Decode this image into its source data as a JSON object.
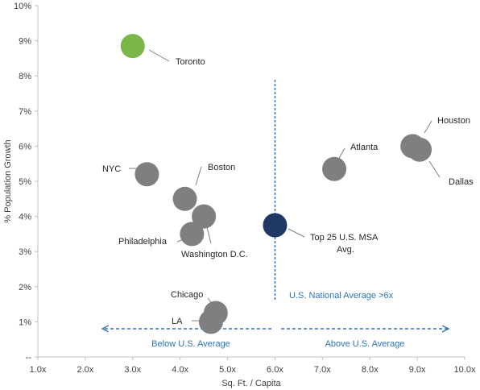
{
  "chart_data": {
    "type": "scatter",
    "xlabel": "Sq. Ft. / Capita",
    "ylabel": "% Population Growth",
    "xlim": [
      1,
      10
    ],
    "ylim": [
      0,
      10
    ],
    "x_ticks": [
      "1.0x",
      "2.0x",
      "3.0x",
      "4.0x",
      "5.0x",
      "6.0x",
      "7.0x",
      "8.0x",
      "9.0x",
      "10.0x"
    ],
    "y_ticks": [
      "--",
      "1%",
      "2%",
      "3%",
      "4%",
      "5%",
      "6%",
      "7%",
      "8%",
      "9%",
      "10%"
    ],
    "grid": false,
    "points": [
      {
        "label": "Toronto",
        "x": 3.0,
        "y": 8.85,
        "color": "#7ab648"
      },
      {
        "label": "NYC",
        "x": 3.3,
        "y": 5.2,
        "color": "#7f7f7f"
      },
      {
        "label": "Boston",
        "x": 4.1,
        "y": 4.5,
        "color": "#7f7f7f"
      },
      {
        "label": "Washington D.C.",
        "x": 4.5,
        "y": 4.0,
        "color": "#7f7f7f"
      },
      {
        "label": "Philadelphia",
        "x": 4.25,
        "y": 3.5,
        "color": "#7f7f7f"
      },
      {
        "label": "Chicago",
        "x": 4.75,
        "y": 1.25,
        "color": "#7f7f7f"
      },
      {
        "label": "LA",
        "x": 4.65,
        "y": 1.0,
        "color": "#7f7f7f"
      },
      {
        "label": "Top 25 U.S. MSA Avg.",
        "x": 6.0,
        "y": 3.75,
        "color": "#1f3864"
      },
      {
        "label": "Atlanta",
        "x": 7.25,
        "y": 5.35,
        "color": "#7f7f7f"
      },
      {
        "label": "Houston",
        "x": 8.9,
        "y": 6.0,
        "color": "#7f7f7f"
      },
      {
        "label": "Dallas",
        "x": 9.05,
        "y": 5.9,
        "color": "#7f7f7f"
      }
    ],
    "reference_line": {
      "x": 6.0,
      "label": "U.S. National Average >6x",
      "color": "#2e75b6"
    },
    "annotations": {
      "below": "Below U.S. Average",
      "above": "Above U.S. Average"
    }
  }
}
